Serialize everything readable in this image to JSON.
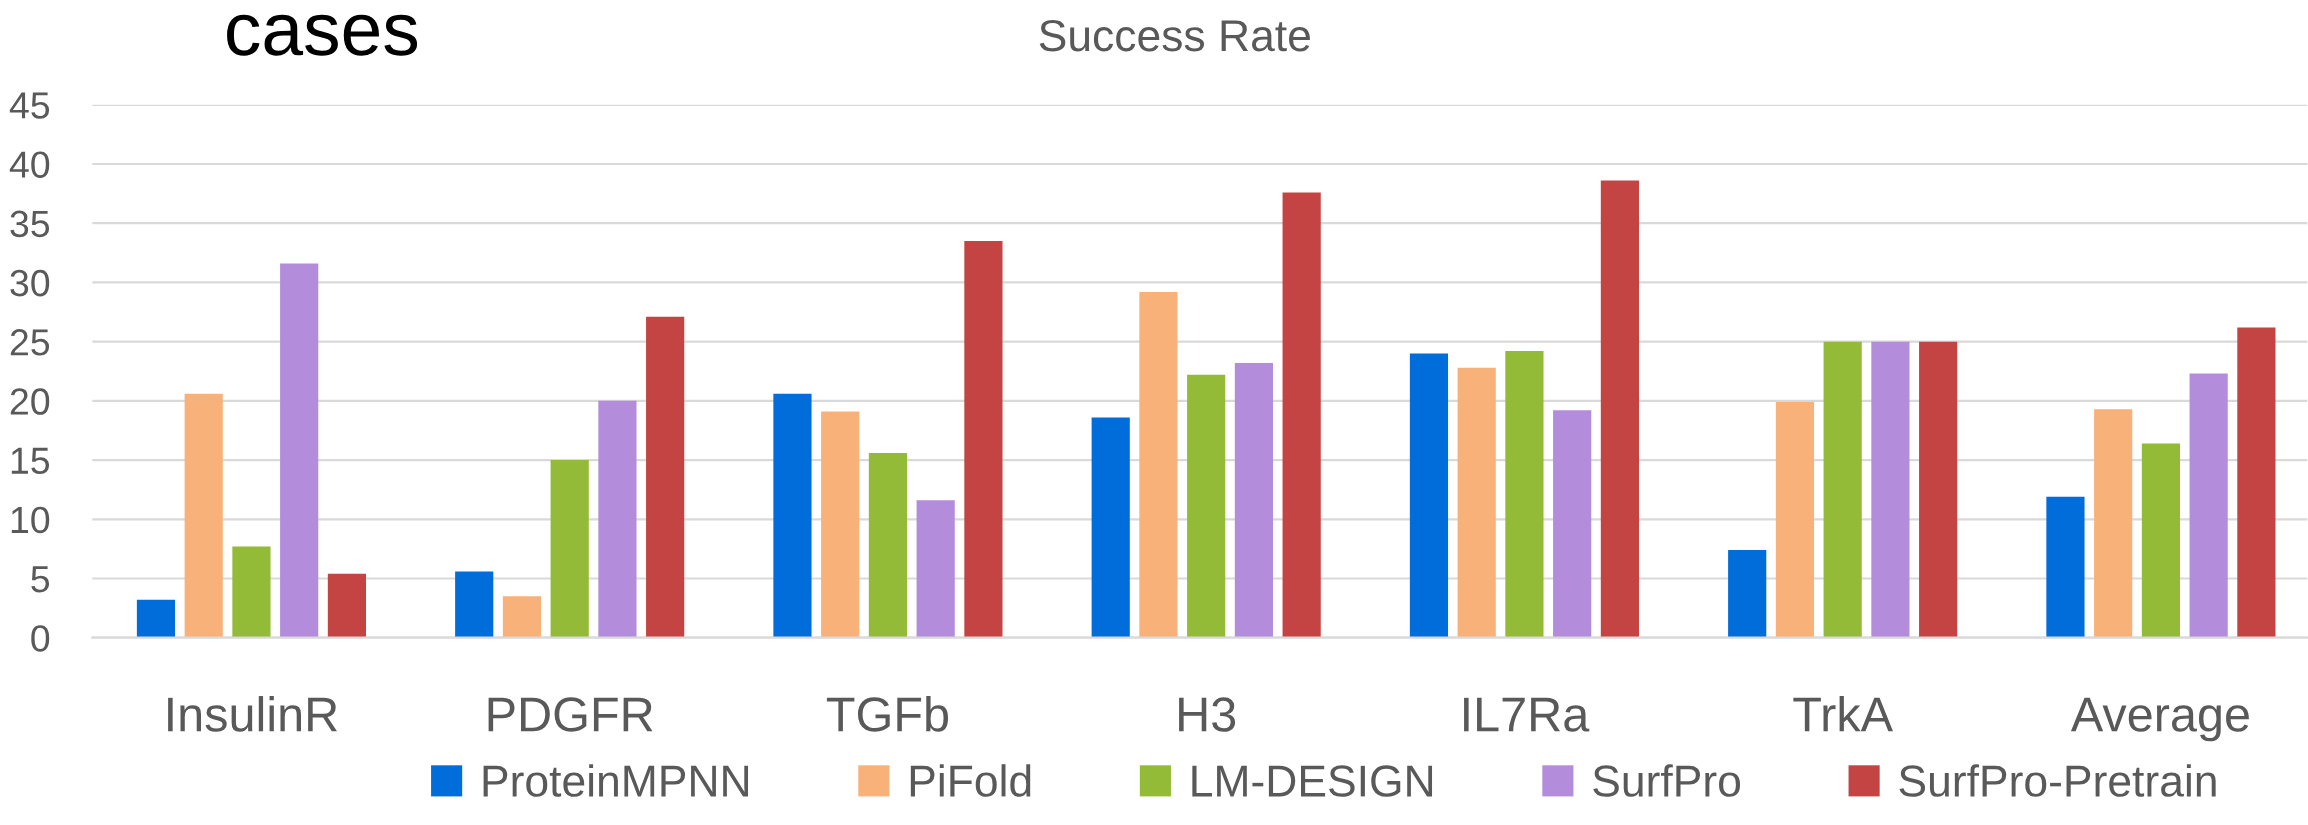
{
  "chart_data": {
    "type": "bar",
    "title": "Success Rate",
    "annotations": [
      "cases"
    ],
    "categories": [
      "InsulinR",
      "PDGFR",
      "TGFb",
      "H3",
      "IL7Ra",
      "TrkA",
      "Average"
    ],
    "series": [
      {
        "name": "ProteinMPNN",
        "color": "#006dda",
        "values": [
          3.2,
          5.6,
          20.6,
          18.6,
          24.0,
          7.4,
          11.9
        ]
      },
      {
        "name": "PiFold",
        "color": "#f8b179",
        "values": [
          20.6,
          3.5,
          19.1,
          29.2,
          22.8,
          19.9,
          19.3
        ]
      },
      {
        "name": "LM-DESIGN",
        "color": "#93bb37",
        "values": [
          7.7,
          15.0,
          15.6,
          22.2,
          24.2,
          25.0,
          16.4
        ]
      },
      {
        "name": "SurfPro",
        "color": "#b38ddb",
        "values": [
          31.6,
          20.0,
          11.6,
          23.2,
          19.2,
          25.0,
          22.3
        ]
      },
      {
        "name": "SurfPro-Pretrain",
        "color": "#c34442",
        "values": [
          5.4,
          27.1,
          33.5,
          37.6,
          38.6,
          25.0,
          26.2
        ]
      }
    ],
    "ylim": [
      0,
      45
    ],
    "yticks": [
      0,
      5,
      10,
      15,
      20,
      25,
      30,
      35,
      40,
      45
    ],
    "grid": "y",
    "legend": "bottom"
  }
}
